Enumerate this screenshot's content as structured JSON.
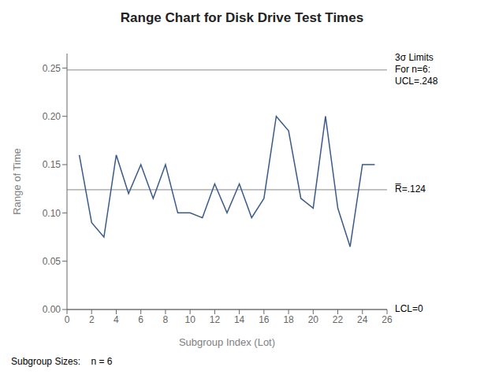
{
  "chart_data": {
    "type": "line",
    "title": "Range Chart for Disk Drive Test Times",
    "xlabel": "Subgroup Index (Lot)",
    "ylabel": "Range of Time",
    "x": [
      1,
      2,
      3,
      4,
      5,
      6,
      7,
      8,
      9,
      10,
      11,
      12,
      13,
      14,
      15,
      16,
      17,
      18,
      19,
      20,
      21,
      22,
      23,
      24,
      25
    ],
    "values": [
      0.16,
      0.09,
      0.075,
      0.16,
      0.12,
      0.15,
      0.115,
      0.15,
      0.1,
      0.1,
      0.095,
      0.13,
      0.1,
      0.13,
      0.095,
      0.115,
      0.2,
      0.185,
      0.115,
      0.105,
      0.2,
      0.105,
      0.065,
      0.15,
      0.15
    ],
    "color": "#3a5a8a",
    "xlim": [
      0,
      26
    ],
    "ylim": [
      0,
      0.265
    ],
    "xticks": [
      0,
      2,
      4,
      6,
      8,
      10,
      12,
      14,
      16,
      18,
      20,
      22,
      24,
      26
    ],
    "yticks": [
      {
        "value": 0,
        "label": "0.00"
      },
      0.05,
      {
        "value": 0.1,
        "label": "0.10"
      },
      0.15,
      {
        "value": 0.2,
        "label": "0.20"
      },
      0.25
    ],
    "reference_lines": [
      {
        "value": 0.248,
        "label": "3σ Limits\nFor n=6:\nUCL=.248"
      },
      {
        "value": 0.124,
        "label": "R̅=.124"
      },
      {
        "value": 0,
        "label": "LCL=0"
      }
    ],
    "footer": "Subgroup Sizes:    n = 6",
    "grid": false
  }
}
